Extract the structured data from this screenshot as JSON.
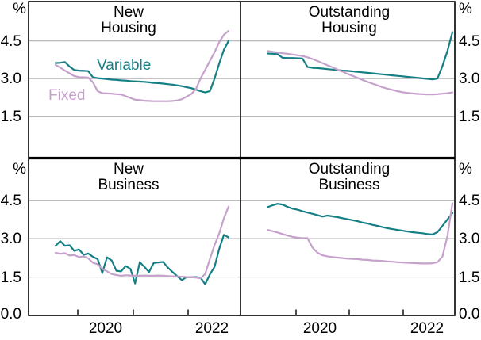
{
  "chart_data": {
    "type": "line",
    "unit": "%",
    "frequency": "monthly",
    "legend_position": "inline-top-left-panel",
    "grid": true,
    "ylim": [
      0,
      6
    ],
    "yticks_top": [
      1.5,
      3.0,
      4.5
    ],
    "yticks_bottom": [
      0.0,
      1.5,
      3.0,
      4.5
    ],
    "y_labels_top": [
      "4.5",
      "3.0",
      "1.5"
    ],
    "y_labels_bottom": [
      "4.5",
      "3.0",
      "1.5",
      "0.0"
    ],
    "x_axis_labels": [
      "2020",
      "2022"
    ],
    "x_year_ticks": [
      "2020-01",
      "2021-01",
      "2022-01"
    ],
    "colors": {
      "variable": "#157F85",
      "fixed": "#C5A1CB",
      "grid": "#B0B0B0",
      "axis": "#000000"
    },
    "months": [
      "2019-08",
      "2019-09",
      "2019-10",
      "2019-11",
      "2019-12",
      "2020-01",
      "2020-02",
      "2020-03",
      "2020-04",
      "2020-05",
      "2020-06",
      "2020-07",
      "2020-08",
      "2020-09",
      "2020-10",
      "2020-11",
      "2020-12",
      "2021-01",
      "2021-02",
      "2021-03",
      "2021-04",
      "2021-05",
      "2021-06",
      "2021-07",
      "2021-08",
      "2021-09",
      "2021-10",
      "2021-11",
      "2021-12",
      "2022-01",
      "2022-02",
      "2022-03",
      "2022-04",
      "2022-05",
      "2022-06",
      "2022-07",
      "2022-08",
      "2022-09"
    ],
    "panels": [
      {
        "id": "new-housing",
        "title_line1": "New",
        "title_line2": "Housing",
        "series": [
          {
            "name": "Variable",
            "color": "#157F85",
            "values": [
              3.62,
              3.63,
              3.66,
              3.48,
              3.34,
              3.32,
              3.31,
              3.3,
              3.05,
              3.02,
              3.0,
              2.98,
              2.96,
              2.95,
              2.93,
              2.92,
              2.9,
              2.89,
              2.88,
              2.87,
              2.85,
              2.83,
              2.82,
              2.8,
              2.78,
              2.76,
              2.73,
              2.7,
              2.66,
              2.62,
              2.56,
              2.5,
              2.45,
              2.5,
              3.0,
              3.6,
              4.15,
              4.5
            ]
          },
          {
            "name": "Fixed",
            "color": "#C5A1CB",
            "values": [
              3.55,
              3.44,
              3.32,
              3.21,
              3.1,
              3.06,
              3.05,
              3.04,
              2.85,
              2.5,
              2.42,
              2.41,
              2.4,
              2.38,
              2.37,
              2.3,
              2.23,
              2.16,
              2.14,
              2.12,
              2.11,
              2.1,
              2.1,
              2.1,
              2.1,
              2.11,
              2.13,
              2.18,
              2.28,
              2.38,
              2.58,
              3.0,
              3.35,
              3.7,
              4.05,
              4.45,
              4.75,
              4.9
            ]
          }
        ]
      },
      {
        "id": "outstanding-housing",
        "title_line1": "Outstanding",
        "title_line2": "Housing",
        "series": [
          {
            "name": "Variable",
            "color": "#157F85",
            "values": [
              4.0,
              3.99,
              3.98,
              3.83,
              3.82,
              3.82,
              3.81,
              3.8,
              3.46,
              3.43,
              3.42,
              3.4,
              3.38,
              3.36,
              3.34,
              3.32,
              3.31,
              3.29,
              3.27,
              3.25,
              3.23,
              3.21,
              3.19,
              3.17,
              3.15,
              3.13,
              3.11,
              3.09,
              3.07,
              3.05,
              3.03,
              3.01,
              2.99,
              2.97,
              3.0,
              3.5,
              4.1,
              4.85
            ]
          },
          {
            "name": "Fixed",
            "color": "#C5A1CB",
            "values": [
              4.1,
              4.07,
              4.04,
              4.01,
              3.99,
              3.96,
              3.93,
              3.9,
              3.85,
              3.78,
              3.7,
              3.62,
              3.53,
              3.45,
              3.36,
              3.28,
              3.19,
              3.11,
              3.03,
              2.95,
              2.87,
              2.8,
              2.73,
              2.66,
              2.6,
              2.55,
              2.5,
              2.46,
              2.43,
              2.41,
              2.39,
              2.38,
              2.37,
              2.37,
              2.38,
              2.4,
              2.42,
              2.45
            ]
          }
        ]
      },
      {
        "id": "new-business",
        "title_line1": "New",
        "title_line2": "Business",
        "series": [
          {
            "name": "Variable",
            "color": "#157F85",
            "values": [
              2.72,
              2.9,
              2.72,
              2.74,
              2.52,
              2.58,
              2.37,
              2.42,
              2.29,
              2.2,
              1.66,
              2.27,
              2.15,
              1.75,
              1.72,
              1.93,
              1.82,
              1.25,
              2.08,
              1.9,
              1.7,
              2.05,
              2.07,
              2.09,
              1.87,
              1.7,
              1.54,
              1.38,
              1.5,
              1.5,
              1.5,
              1.48,
              1.22,
              1.6,
              1.9,
              2.6,
              3.15,
              3.05
            ]
          },
          {
            "name": "Fixed",
            "color": "#C5A1CB",
            "values": [
              2.45,
              2.41,
              2.43,
              2.34,
              2.36,
              2.28,
              2.31,
              2.23,
              2.06,
              2.0,
              1.82,
              1.72,
              1.62,
              1.58,
              1.55,
              1.57,
              1.56,
              1.55,
              1.55,
              1.56,
              1.55,
              1.55,
              1.56,
              1.55,
              1.54,
              1.53,
              1.52,
              1.51,
              1.5,
              1.5,
              1.48,
              1.45,
              1.62,
              2.2,
              2.75,
              3.2,
              3.8,
              4.25
            ]
          }
        ]
      },
      {
        "id": "outstanding-business",
        "title_line1": "Outstanding",
        "title_line2": "Business",
        "series": [
          {
            "name": "Variable",
            "color": "#157F85",
            "values": [
              4.23,
              4.3,
              4.36,
              4.33,
              4.24,
              4.17,
              4.13,
              4.07,
              4.02,
              3.97,
              3.92,
              3.86,
              3.9,
              3.87,
              3.84,
              3.8,
              3.76,
              3.72,
              3.68,
              3.63,
              3.59,
              3.54,
              3.5,
              3.45,
              3.41,
              3.37,
              3.34,
              3.31,
              3.28,
              3.25,
              3.23,
              3.21,
              3.18,
              3.16,
              3.25,
              3.5,
              3.75,
              4.0
            ]
          },
          {
            "name": "Fixed",
            "color": "#C5A1CB",
            "values": [
              3.34,
              3.29,
              3.24,
              3.18,
              3.12,
              3.07,
              3.04,
              3.02,
              3.02,
              2.65,
              2.45,
              2.35,
              2.31,
              2.28,
              2.26,
              2.24,
              2.22,
              2.21,
              2.2,
              2.18,
              2.17,
              2.15,
              2.14,
              2.13,
              2.11,
              2.1,
              2.08,
              2.07,
              2.06,
              2.05,
              2.04,
              2.03,
              2.03,
              2.04,
              2.08,
              2.3,
              3.1,
              4.38
            ]
          }
        ]
      }
    ]
  }
}
